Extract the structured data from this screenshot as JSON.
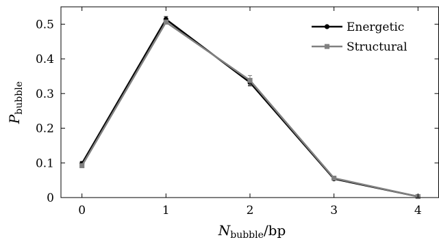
{
  "chart_data": {
    "type": "line",
    "xlabel": {
      "main": "N",
      "sub": "bubble",
      "suffix": "/bp"
    },
    "ylabel": {
      "main": "P",
      "sub": "bubble"
    },
    "xlim": [
      -0.25,
      4.25
    ],
    "ylim": [
      0,
      0.55
    ],
    "xticks": [
      0,
      1,
      2,
      3,
      4
    ],
    "xtick_labels": [
      "0",
      "1",
      "2",
      "3",
      "4"
    ],
    "yticks": [
      0,
      0.1,
      0.2,
      0.3,
      0.4,
      0.5
    ],
    "ytick_labels": [
      "0",
      "0.1",
      "0.2",
      "0.3",
      "0.4",
      "0.5"
    ],
    "grid": false,
    "legend_position": "top-right",
    "x": [
      0,
      1,
      2,
      3,
      4
    ],
    "series": [
      {
        "name": "Energetic",
        "color": "#000000",
        "marker": "circle",
        "values": [
          0.098,
          0.514,
          0.332,
          0.054,
          0.003
        ],
        "errors": [
          0.006,
          0.008,
          0.01,
          0.003,
          0.001
        ]
      },
      {
        "name": "Structural",
        "color": "#808080",
        "marker": "square",
        "values": [
          0.092,
          0.506,
          0.338,
          0.056,
          0.003
        ],
        "errors": [
          0.006,
          0.006,
          0.014,
          0.003,
          0.001
        ]
      }
    ]
  }
}
